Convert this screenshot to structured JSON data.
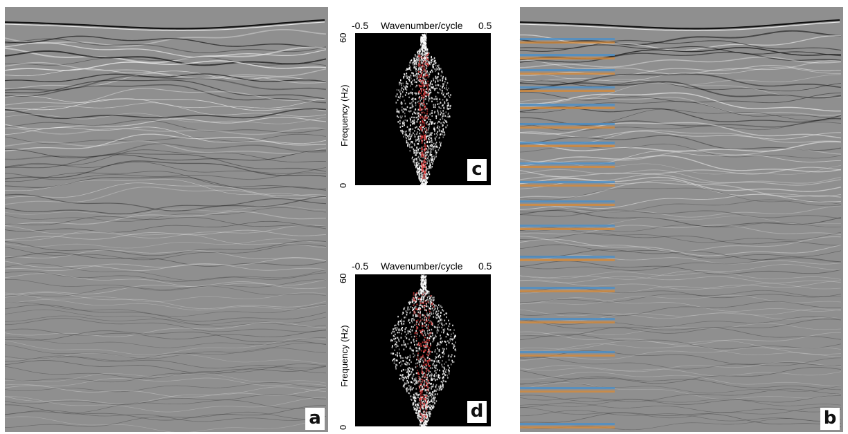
{
  "panels": {
    "a": {
      "label": "a"
    },
    "b": {
      "label": "b"
    },
    "c": {
      "label": "c",
      "x_min": "-0.5",
      "x_max": "0.5",
      "x_title": "Wavenumber/cycle",
      "y_top": "60",
      "y_bottom": "0",
      "y_title": "Frequency (Hz)"
    },
    "d": {
      "label": "d",
      "x_min": "-0.5",
      "x_max": "0.5",
      "x_title": "Wavenumber/cycle",
      "y_top": "60",
      "y_bottom": "0",
      "y_title": "Frequency (Hz)"
    }
  },
  "colors": {
    "seismic_bg": "#8f8f8f",
    "spectrum_bg": "#000000",
    "spectrum_core": "#e23a3a",
    "trace_blue": "#4a8ec8",
    "trace_orange": "#d48a3a"
  }
}
